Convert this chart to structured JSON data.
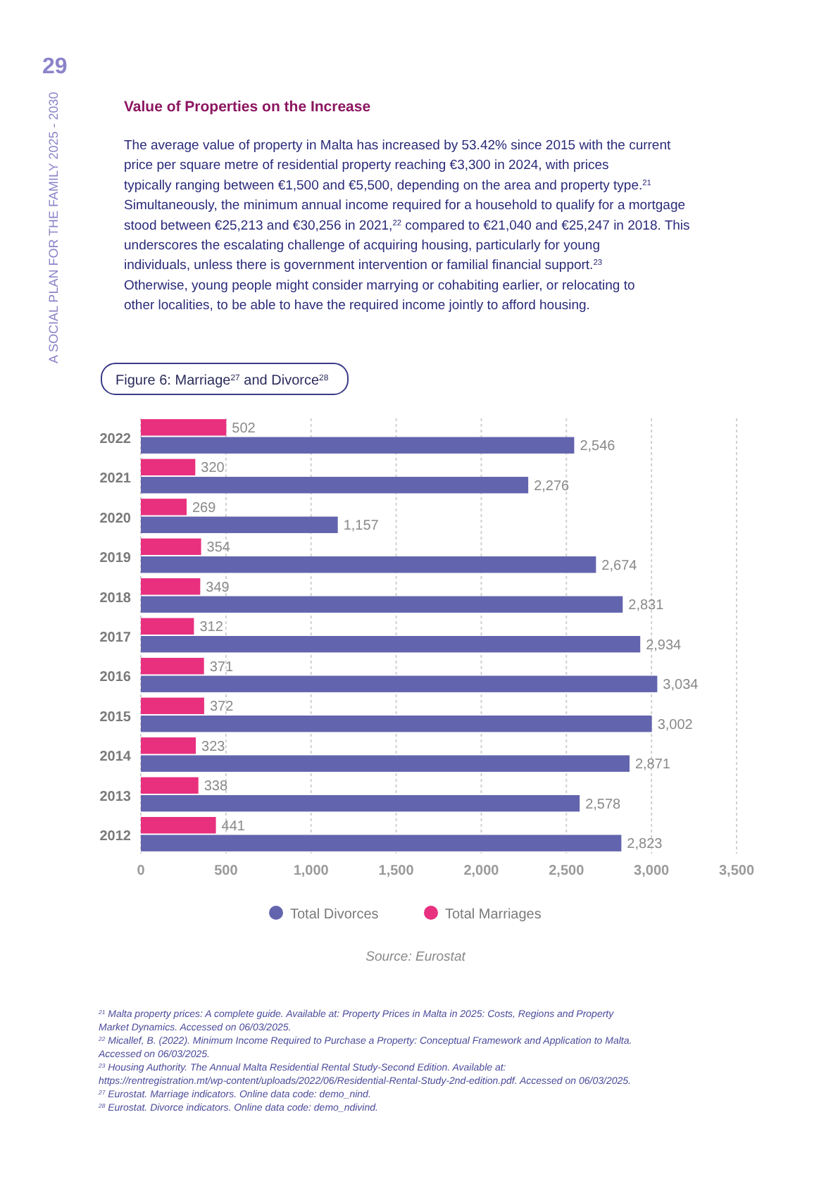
{
  "chart_data": {
    "type": "bar",
    "orientation": "horizontal",
    "title": "Figure 6: Marriage$^{27}$ and Divorce$^{28}$",
    "categories": [
      "2022",
      "2021",
      "2020",
      "2019",
      "2018",
      "2017",
      "2016",
      "2015",
      "2014",
      "2013",
      "2012"
    ],
    "series": [
      {
        "name": "Total Divorces",
        "color": "#6264ae",
        "values": [
          2546,
          2276,
          1157,
          2674,
          2831,
          2934,
          3034,
          3002,
          2871,
          2578,
          2823
        ],
        "value_labels": [
          "2,546",
          "2,276",
          "1,157",
          "2,674",
          "2,831",
          "2,934",
          "3,034",
          "3,002",
          "2,871",
          "2,578",
          "2,823"
        ]
      },
      {
        "name": "Total Marriages",
        "color": "#e8307f",
        "values": [
          502,
          320,
          269,
          354,
          349,
          312,
          371,
          372,
          323,
          338,
          441
        ],
        "value_labels": [
          "502",
          "320",
          "269",
          "354",
          "349",
          "312",
          "371",
          "372",
          "323",
          "338",
          "441"
        ]
      }
    ],
    "xlim": [
      0,
      3500
    ],
    "xticks": [
      {
        "value": 0,
        "label": "0"
      },
      {
        "value": 500,
        "label": "500"
      },
      {
        "value": 1000,
        "label": "1,000"
      },
      {
        "value": 1500,
        "label": "1,500"
      },
      {
        "value": 2000,
        "label": "2,000"
      },
      {
        "value": 2500,
        "label": "2,500"
      },
      {
        "value": 3000,
        "label": "3,000"
      },
      {
        "value": 3500,
        "label": "3,500"
      }
    ],
    "grid": "x",
    "legend": "bottom",
    "annotations": [
      "29",
      "A SOCIAL PLAN FOR THE FAMILY 2025 - 2030",
      "Value of Properties on the Increase",
      "The average value of property in Malta has increased by 53.42% since 2015 with the current price per square metre of residential property reaching €3,300 in 2024, with prices typically ranging between €1,500 and €5,500, depending on the area and property type.$^{21}$ Simultaneously, the minimum annual income required for a household to qualify for a mortgage stood between €25,213 and €30,256 in 2021,$^{22}$ compared to €21,040 and €25,247 in 2018. This underscores the escalating challenge of acquiring housing, particularly for young individuals, unless there is government intervention or familial financial support.$^{23}$ Otherwise, young people might consider marrying or cohabiting earlier, or relocating to other localities, to be able to have the required income jointly to afford housing.",
      "Source: Eurostat",
      "$^{21}$ Malta property prices: A complete guide. Available at: Property Prices in Malta in 2025: Costs, Regions and Property Market Dynamics. Accessed on 06/03/2025.",
      "$^{22}$ Micallef, B. (2022). Minimum Income Required to Purchase a Property: Conceptual Framework and Application to Malta. Accessed on 06/03/2025.",
      "$^{23}$ Housing Authority. The Annual Malta Residential Rental Study-Second Edition. Available at: https://rentregistration.mt/wp-content/uploads/2022/06/Residential-Rental-Study-2nd-edition.pdf. Accessed on 06/03/2025.",
      "$^{27}$ Eurostat. Marriage indicators. Online data code: demo_nind.",
      "$^{28}$ Eurostat. Divorce indicators. Online data code: demo_ndivind."
    ]
  }
}
